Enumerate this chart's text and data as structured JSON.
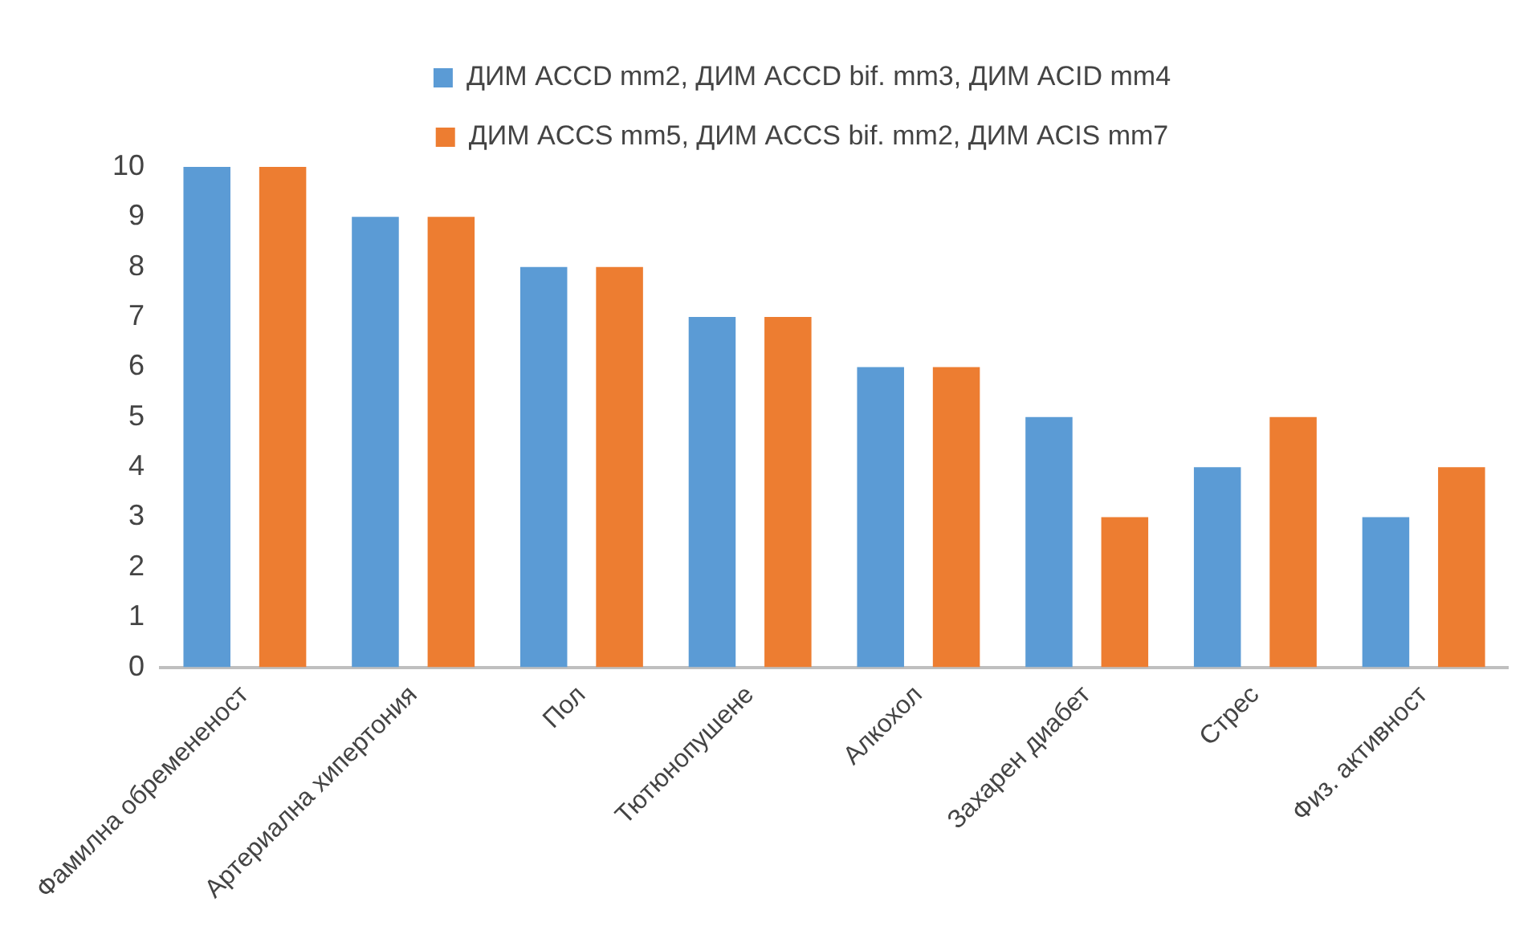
{
  "chart_data": {
    "type": "bar",
    "categories": [
      "Фамилна обремененост",
      "Артериална хипертония",
      "Пол",
      "Тютюнопушене",
      "Алкохол",
      "Захарен диабет",
      "Стрес",
      "Физ. активност"
    ],
    "series": [
      {
        "name": "ДИМ ACCD mm2, ДИМ ACCD bif. mm3, ДИМ ACID mm4",
        "color": "#5b9bd5",
        "values": [
          10,
          9,
          8,
          7,
          6,
          5,
          4,
          3
        ]
      },
      {
        "name": "ДИМ ACCS mm5, ДИМ ACCS bif. mm2, ДИМ ACIS mm7",
        "color": "#ed7d31",
        "values": [
          10,
          9,
          8,
          7,
          6,
          3,
          5,
          4
        ]
      }
    ],
    "ylim": [
      0,
      10
    ],
    "yticks": [
      0,
      1,
      2,
      3,
      4,
      5,
      6,
      7,
      8,
      9,
      10
    ],
    "grid": false,
    "legend": "top"
  }
}
